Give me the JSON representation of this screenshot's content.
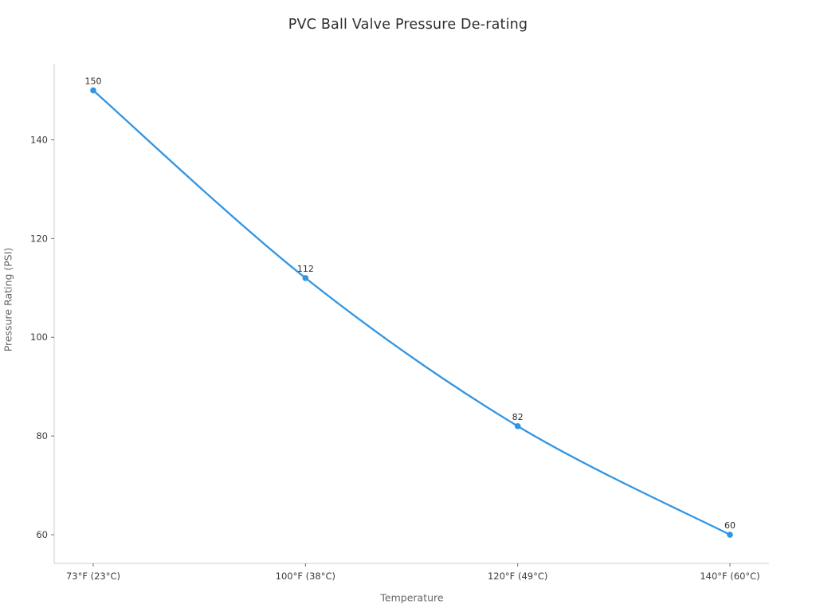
{
  "chart_data": {
    "type": "line",
    "title": "PVC Ball Valve Pressure De-rating",
    "xlabel": "Temperature",
    "ylabel": "Pressure Rating (PSI)",
    "categories": [
      "73°F (23°C)",
      "100°F (38°C)",
      "120°F (49°C)",
      "140°F (60°C)"
    ],
    "series": [
      {
        "name": "Pressure Rating (PSI)",
        "values": [
          150,
          112,
          82,
          60
        ]
      }
    ],
    "data_labels": [
      "150",
      "112",
      "82",
      "60"
    ],
    "yticks": [
      60,
      80,
      100,
      120,
      140
    ],
    "ylim": [
      54.2,
      155.4
    ],
    "grid": false,
    "legend": "none",
    "line_shape": "spline",
    "marker": "circle",
    "colors": {
      "line": "#3295e2",
      "marker": "#3295e2",
      "spine": "#cccccc",
      "tick_mark": "#6e6e6e",
      "tick_label": "#3d3d3d",
      "axis_title": "#666666",
      "point_label": "#2b2b2b",
      "title": "#2e2e2e",
      "background": "#ffffff"
    }
  }
}
